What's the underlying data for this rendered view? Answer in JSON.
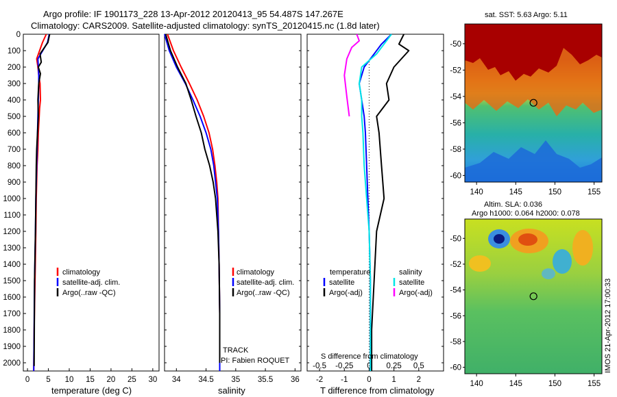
{
  "figure": {
    "title_line1": "Argo profile: IF 1901173_228 13-Apr-2012 20120413_95 54.487S 147.267E",
    "title_line2": "Climatology: CARS2009. Satellite-adjusted climatology: synTS_20120415.nc (1.8d later)",
    "watermark": "IMOS 21-Apr-2012 17:00:33",
    "track_label": "TRACK",
    "pi_label": "PI: Fabien ROQUET"
  },
  "colors": {
    "climatology": "#ff0000",
    "satellite": "#0000ff",
    "argo": "#000000",
    "sat_salinity": "#00e6e6",
    "argo_salinity_adj": "#ff00ff",
    "zero_line": "#000000"
  },
  "chart_data": [
    {
      "type": "line",
      "title": "",
      "xlabel": "temperature (deg C)",
      "ylabel": "",
      "xlim": [
        -1,
        31.5
      ],
      "ylim": [
        2050,
        0
      ],
      "y_inverted": true,
      "xticks": [
        0,
        5,
        10,
        15,
        20,
        25,
        30
      ],
      "yticks": [
        0,
        100,
        200,
        300,
        400,
        500,
        600,
        700,
        800,
        900,
        1000,
        1100,
        1200,
        1300,
        1400,
        1500,
        1600,
        1700,
        1800,
        1900,
        2000
      ],
      "legend": [
        "climatology",
        "satellite-adj. clim.",
        "Argo(..raw -QC)"
      ],
      "series": [
        {
          "name": "climatology",
          "color": "#ff0000",
          "x": [
            4.5,
            3.6,
            2.2,
            2.5,
            2.7,
            3.0,
            3.1,
            2.9,
            2.8,
            2.6,
            2.5,
            2.3,
            2.2,
            2.1,
            2.0,
            1.8,
            1.6,
            1.5
          ],
          "y": [
            0,
            50,
            150,
            200,
            250,
            300,
            400,
            450,
            500,
            600,
            700,
            800,
            900,
            1000,
            1200,
            1500,
            1800,
            2050
          ]
        },
        {
          "name": "satellite-adj. clim.",
          "color": "#0000ff",
          "x": [
            5.2,
            4.8,
            2.5,
            2.6,
            2.7,
            2.7,
            2.6,
            2.5,
            2.4,
            2.3,
            2.2,
            2.1,
            2.0,
            1.9,
            1.7,
            1.5
          ],
          "y": [
            0,
            50,
            150,
            200,
            250,
            300,
            400,
            500,
            600,
            700,
            800,
            900,
            1000,
            1200,
            1500,
            2050
          ]
        },
        {
          "name": "Argo(..raw -QC)",
          "color": "#000000",
          "x": [
            5.3,
            4.9,
            3.0,
            3.3,
            2.6,
            3.1,
            2.7,
            2.5,
            2.6,
            2.4,
            2.2,
            2.1,
            2.0,
            1.9,
            1.7,
            1.6
          ],
          "y": [
            0,
            50,
            120,
            170,
            200,
            240,
            300,
            400,
            500,
            600,
            700,
            800,
            1000,
            1200,
            1500,
            2020
          ]
        }
      ]
    },
    {
      "type": "line",
      "title": "",
      "xlabel": "salinity",
      "ylabel": "",
      "xlim": [
        33.8,
        36.1
      ],
      "ylim": [
        2050,
        0
      ],
      "y_inverted": true,
      "xticks": [
        34,
        34.5,
        35,
        35.5,
        36
      ],
      "legend": [
        "climatology",
        "satellite-adj. clim.",
        "Argo(..raw -QC)"
      ],
      "series": [
        {
          "name": "climatology",
          "color": "#ff0000",
          "x": [
            33.85,
            33.95,
            34.08,
            34.22,
            34.35,
            34.46,
            34.55,
            34.61,
            34.65,
            34.68,
            34.7,
            34.71,
            34.72,
            34.73,
            34.73
          ],
          "y": [
            0,
            100,
            200,
            300,
            400,
            500,
            600,
            700,
            800,
            900,
            1000,
            1200,
            1400,
            1700,
            2050
          ]
        },
        {
          "name": "satellite-adj. clim.",
          "color": "#0000ff",
          "x": [
            33.8,
            33.88,
            34.0,
            34.15,
            34.28,
            34.4,
            34.5,
            34.58,
            34.63,
            34.66,
            34.69,
            34.71,
            34.72,
            34.73,
            34.73
          ],
          "y": [
            0,
            100,
            200,
            300,
            400,
            500,
            600,
            700,
            800,
            900,
            1000,
            1200,
            1400,
            1700,
            2050
          ]
        },
        {
          "name": "Argo(..raw -QC)",
          "color": "#000000",
          "x": [
            33.82,
            33.9,
            34.02,
            34.16,
            34.25,
            34.33,
            34.42,
            34.48,
            34.56,
            34.62,
            34.66,
            34.7,
            34.72,
            34.73,
            34.73
          ],
          "y": [
            0,
            100,
            200,
            300,
            400,
            500,
            600,
            700,
            800,
            900,
            1000,
            1200,
            1400,
            1700,
            2000
          ]
        }
      ]
    },
    {
      "type": "line",
      "title": "",
      "xlabel": "T difference from climatology",
      "ylabel": "",
      "top_xlabel": "S difference from climatology",
      "xlim": [
        -2.5,
        3.0
      ],
      "ylim": [
        2050,
        0
      ],
      "y_inverted": true,
      "xticks": [
        -2,
        -1,
        0,
        1,
        2
      ],
      "secondary_xticks": [
        -0.5,
        -0.25,
        0,
        0.25,
        0.5
      ],
      "legend_temperature_title": "temperature",
      "legend_salinity_title": "salinity",
      "legend": [
        "satellite",
        "Argo(-adj)",
        "satellite",
        "Argo(-adj)"
      ],
      "series": [
        {
          "name": "satellite",
          "group": "temperature",
          "color": "#0000ff",
          "x": [
            0.9,
            0.5,
            0.2,
            -0.2,
            -0.4,
            -0.3,
            -0.2,
            -0.15,
            -0.1,
            -0.05,
            0,
            0.05,
            0.05,
            0.05
          ],
          "y": [
            0,
            60,
            120,
            200,
            300,
            400,
            500,
            600,
            800,
            1000,
            1200,
            1500,
            1800,
            2050
          ]
        },
        {
          "name": "Argo(-adj)",
          "group": "temperature",
          "color": "#000000",
          "x": [
            1.4,
            1.2,
            1.6,
            1.0,
            0.7,
            0.8,
            0.3,
            0.4,
            0.5,
            0.6,
            0.3,
            0.2,
            0.1,
            0.1
          ],
          "y": [
            0,
            60,
            100,
            200,
            300,
            400,
            500,
            600,
            800,
            1000,
            1200,
            1500,
            1800,
            2050
          ]
        },
        {
          "name": "satellite",
          "group": "salinity",
          "color": "#00e6e6",
          "x": [
            0.9,
            0.6,
            0.3,
            -0.3,
            -0.4,
            -0.3,
            -0.3,
            -0.25,
            -0.2,
            -0.1,
            0,
            0.05,
            0.05,
            0.05
          ],
          "y": [
            0,
            60,
            120,
            200,
            300,
            400,
            500,
            600,
            800,
            1000,
            1200,
            1500,
            1800,
            2050
          ]
        },
        {
          "name": "Argo(-adj)",
          "group": "salinity",
          "color": "#ff00ff",
          "x": [
            -0.5,
            -0.4,
            -0.7,
            -0.9,
            -1.0,
            -0.9,
            -0.8
          ],
          "y": [
            0,
            40,
            80,
            150,
            250,
            380,
            500
          ]
        }
      ]
    },
    {
      "type": "heatmap",
      "title": "sat. SST: 5.63 Argo: 5.11",
      "xlim": [
        138.5,
        156
      ],
      "ylim": [
        -60.5,
        -48.5
      ],
      "xticks": [
        140,
        145,
        150,
        155
      ],
      "yticks": [
        -50,
        -52,
        -54,
        -56,
        -58,
        -60
      ],
      "argo_position": {
        "lon": 147.267,
        "lat": -54.487
      }
    },
    {
      "type": "heatmap",
      "title": "Altim. SLA: 0.036",
      "subtitle": "Argo h1000: 0.064 h2000: 0.078",
      "xlim": [
        138.5,
        156
      ],
      "ylim": [
        -60.5,
        -48.5
      ],
      "xticks": [
        140,
        145,
        150,
        155
      ],
      "yticks": [
        -50,
        -52,
        -54,
        -56,
        -58,
        -60
      ],
      "argo_position": {
        "lon": 147.267,
        "lat": -54.487
      }
    }
  ]
}
